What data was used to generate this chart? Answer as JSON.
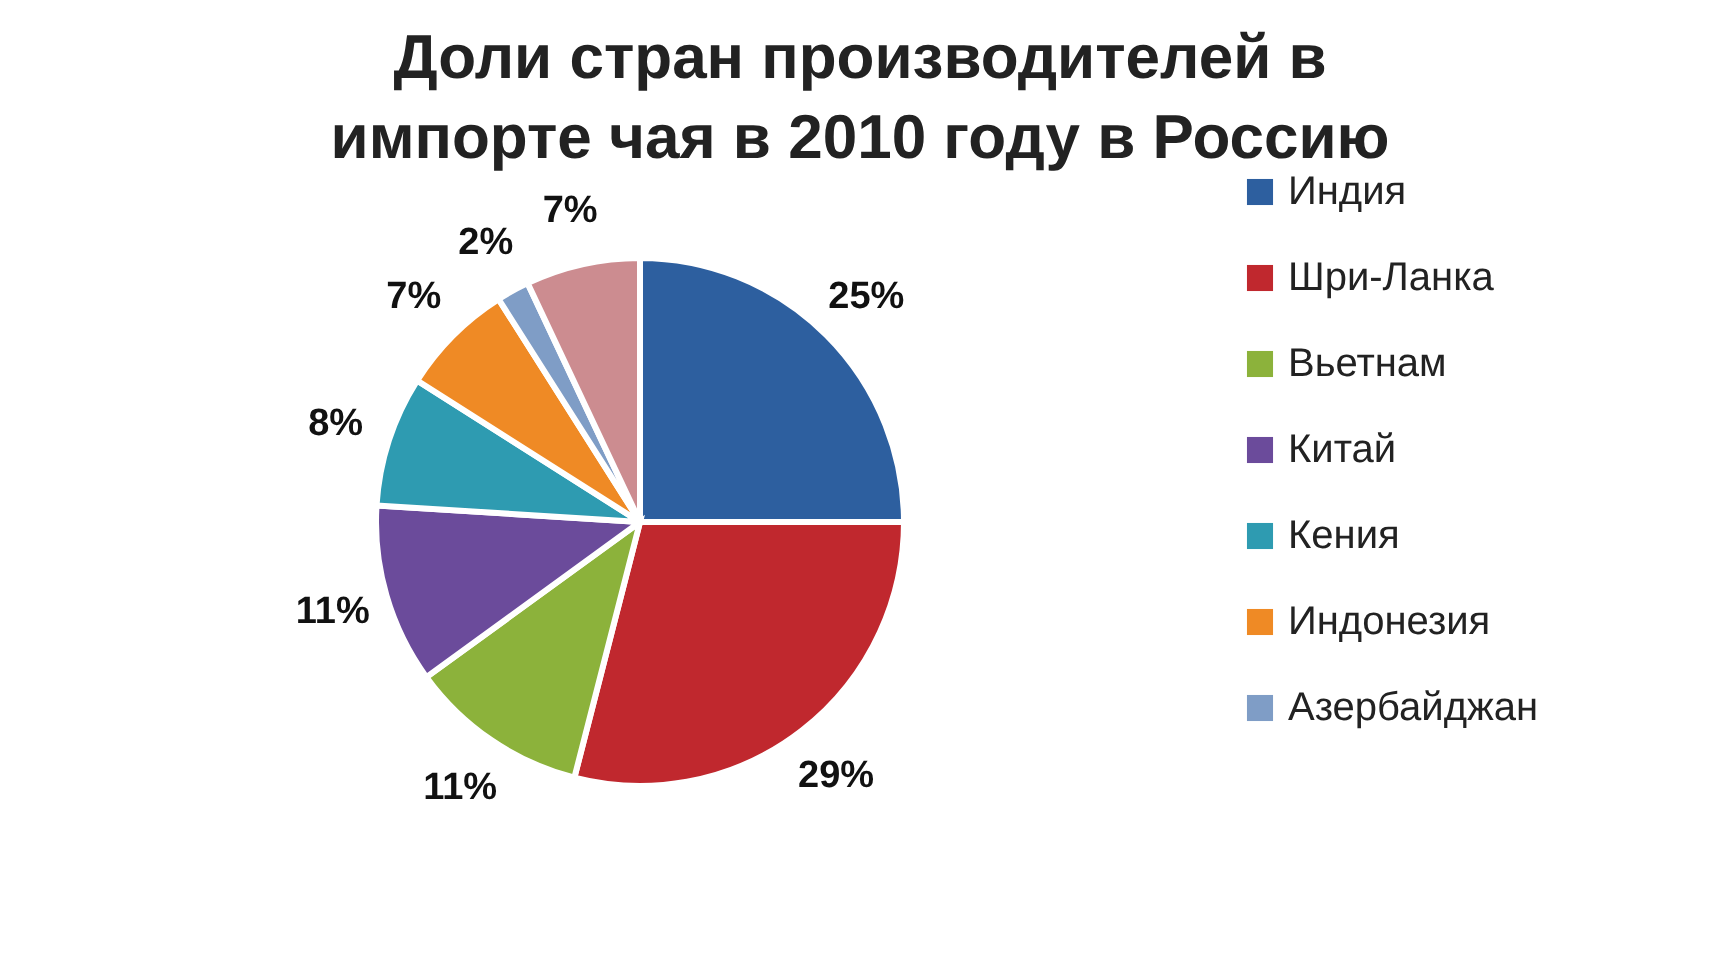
{
  "chart_data": {
    "type": "pie",
    "title": "Доли стран производителей в импорте чая в 2010 году в Россию",
    "categories": [
      "Индия",
      "Шри-Ланка",
      "Вьетнам",
      "Китай",
      "Кения",
      "Индонезия",
      "Азербайджан",
      null
    ],
    "values": [
      25,
      29,
      11,
      11,
      8,
      7,
      2,
      7
    ],
    "value_labels": [
      "25%",
      "29%",
      "11%",
      "11%",
      "8%",
      "7%",
      "2%",
      "7%"
    ],
    "colors": [
      "#2d5f9f",
      "#c0282e",
      "#8cb23b",
      "#6b4b9b",
      "#2e9bb1",
      "#ef8a25",
      "#7f9dc6",
      "#cc8c90"
    ],
    "legend": "right"
  }
}
